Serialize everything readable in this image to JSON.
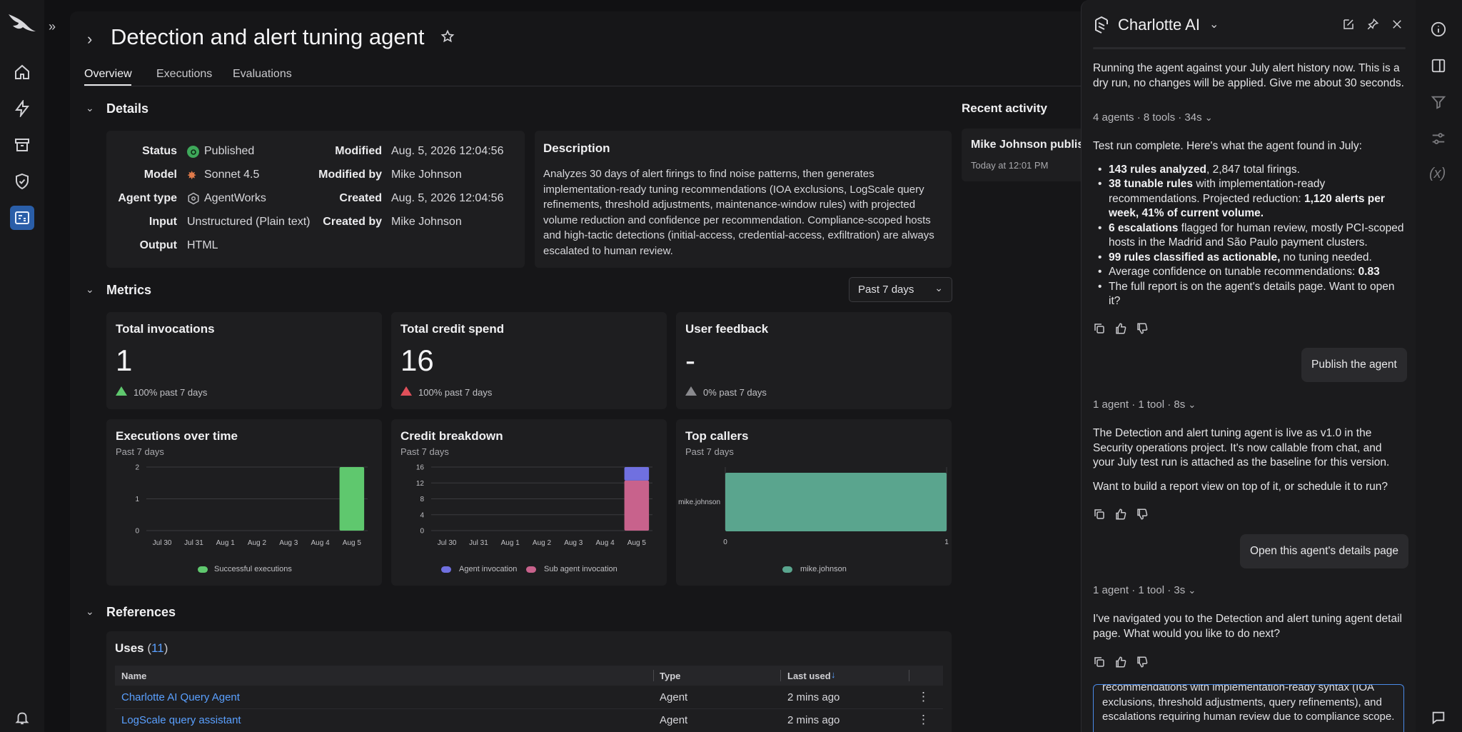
{
  "page": {
    "title": "Detection and alert tuning agent",
    "tabs": [
      "Overview",
      "Executions",
      "Evaluations"
    ],
    "active_tab": "Overview"
  },
  "details": {
    "section_title": "Details",
    "status_label": "Status",
    "status_value": "Published",
    "model_label": "Model",
    "model_value": "Sonnet 4.5",
    "agent_type_label": "Agent type",
    "agent_type_value": "AgentWorks",
    "input_label": "Input",
    "input_value": "Unstructured (Plain text)",
    "output_label": "Output",
    "output_value": "HTML",
    "modified_label": "Modified",
    "modified_value": "Aug. 5, 2026 12:04:56",
    "modified_by_label": "Modified by",
    "modified_by_value": "Mike Johnson",
    "created_label": "Created",
    "created_value": "Aug. 5, 2026 12:04:56",
    "created_by_label": "Created by",
    "created_by_value": "Mike Johnson",
    "description_title": "Description",
    "description_text": "Analyzes 30 days of alert firings to find noise patterns, then generates implementation-ready tuning recommendations (IOA exclusions, LogScale query refinements, threshold adjustments, maintenance-window rules) with projected volume reduction and confidence per recommendation. Compliance-scoped hosts and high-tactic detections (initial-access, credential-access, exfiltration) are always escalated to human review."
  },
  "recent_activity": {
    "title": "Recent activity",
    "item_text": "Mike Johnson publis",
    "item_time": "Today at 12:01 PM"
  },
  "metrics": {
    "section_title": "Metrics",
    "range_select": "Past 7 days",
    "cards": [
      {
        "title": "Total invocations",
        "value": "1",
        "change": "100% past 7 days"
      },
      {
        "title": "Total credit spend",
        "value": "16",
        "change": "100% past 7 days"
      },
      {
        "title": "User feedback",
        "value": "-",
        "change": "0% past 7 days"
      }
    ],
    "colors": {
      "up": "#5fc86e",
      "down": "#e0505a",
      "neutral": "#8a8a8e"
    }
  },
  "charts": {
    "executions": {
      "title": "Executions over time",
      "subtitle": "Past 7 days",
      "legend": "Successful executions"
    },
    "credit": {
      "title": "Credit breakdown",
      "subtitle": "Past 7 days",
      "legend_a": "Agent invocation",
      "legend_b": "Sub agent invocation"
    },
    "callers": {
      "title": "Top callers",
      "subtitle": "Past 7 days",
      "legend": "mike.johnson"
    }
  },
  "chart_data": [
    {
      "type": "bar",
      "title": "Executions over time",
      "categories": [
        "Jul 30",
        "Jul 31",
        "Aug 1",
        "Aug 2",
        "Aug 3",
        "Aug 4",
        "Aug 5"
      ],
      "series": [
        {
          "name": "Successful executions",
          "values": [
            0,
            0,
            0,
            0,
            0,
            0,
            2
          ],
          "color": "#5fc86e"
        }
      ],
      "yticks": [
        "0",
        "1",
        "2"
      ],
      "ylim": [
        0,
        2
      ]
    },
    {
      "type": "bar",
      "title": "Credit breakdown",
      "stacked": true,
      "categories": [
        "Jul 30",
        "Jul 31",
        "Aug 1",
        "Aug 2",
        "Aug 3",
        "Aug 4",
        "Aug 5"
      ],
      "series": [
        {
          "name": "Sub agent invocation",
          "values": [
            0,
            0,
            0,
            0,
            0,
            0,
            12.6
          ],
          "color": "#c8628c"
        },
        {
          "name": "Agent invocation",
          "values": [
            0,
            0,
            0,
            0,
            0,
            0,
            3.4
          ],
          "color": "#7070e0"
        }
      ],
      "yticks": [
        "0",
        "4",
        "8",
        "12",
        "16"
      ],
      "ylim": [
        0,
        16
      ]
    },
    {
      "type": "bar",
      "orientation": "horizontal",
      "title": "Top callers",
      "categories": [
        "mike.johnson"
      ],
      "series": [
        {
          "name": "mike.johnson",
          "values": [
            1
          ],
          "color": "#5aa58e"
        }
      ],
      "xticks": [
        "0",
        "1"
      ],
      "xlim": [
        0,
        1
      ]
    }
  ],
  "references": {
    "section_title": "References",
    "uses_label": "Uses",
    "uses_count": "11",
    "columns": [
      "Name",
      "Type",
      "Last used"
    ],
    "rows": [
      {
        "name": "Charlotte AI Query Agent",
        "type": "Agent",
        "last_used": "2 mins ago"
      },
      {
        "name": "LogScale query assistant",
        "type": "Agent",
        "last_used": "2 mins ago"
      }
    ]
  },
  "chat": {
    "title": "Charlotte AI",
    "msg1": "Running the agent against your July alert history now. This is a dry run, no changes will be applied. Give me about 30 seconds.",
    "meta1": "4 agents · 8 tools · 34s",
    "msg2_intro": "Test run complete. Here's what the agent found in July:",
    "b1_bold": "143 rules analyzed",
    "b1_rest": ", 2,847 total firings.",
    "b2_bold": "38 tunable rules",
    "b2_rest": " with implementation-ready recommendations. Projected reduction: ",
    "b2_bold2": "1,120 alerts per week, 41% of current volume.",
    "b3_bold": "6 escalations",
    "b3_rest": " flagged for human review, mostly PCI-scoped hosts in the Madrid and São Paulo payment clusters.",
    "b4_bold": "99 rules classified as actionable,",
    "b4_rest": " no tuning needed.",
    "b5_rest": "Average confidence on tunable recommendations: ",
    "b5_bold": "0.83",
    "b6_rest": "The full report is on the agent's details page. Want to open it?",
    "user1": "Publish the agent",
    "meta2": "1 agent · 1 tool · 8s",
    "msg3": "The Detection and alert tuning agent is live as v1.0 in the Security operations project. It's now callable from chat, and your July test run is attached as the baseline for this version.",
    "msg4": "Want to build a report view on top of it, or schedule it to run?",
    "user2": "Open this agent's details page",
    "meta3": "1 agent · 1 tool · 3s",
    "msg5": "I've navigated you to the Detection and alert tuning agent detail page. What would you like to do next?",
    "input_text": "recommendations with implementation-ready syntax (IOA exclusions, threshold adjustments, query refinements), and escalations requiring human review due to compliance scope."
  }
}
